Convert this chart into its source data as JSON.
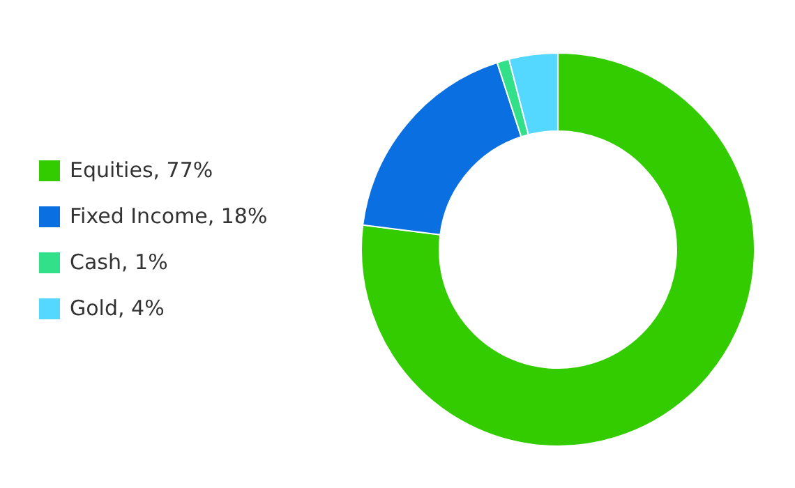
{
  "chart_data": {
    "type": "donut",
    "categories": [
      "Equities",
      "Fixed Income",
      "Cash",
      "Gold"
    ],
    "values": [
      77,
      18,
      1,
      4
    ],
    "value_labels": [
      "77%",
      "18%",
      "1%",
      "4%"
    ],
    "colors": [
      "#33cc00",
      "#0a6fe0",
      "#33e08a",
      "#55d8ff"
    ],
    "legend": "left"
  }
}
